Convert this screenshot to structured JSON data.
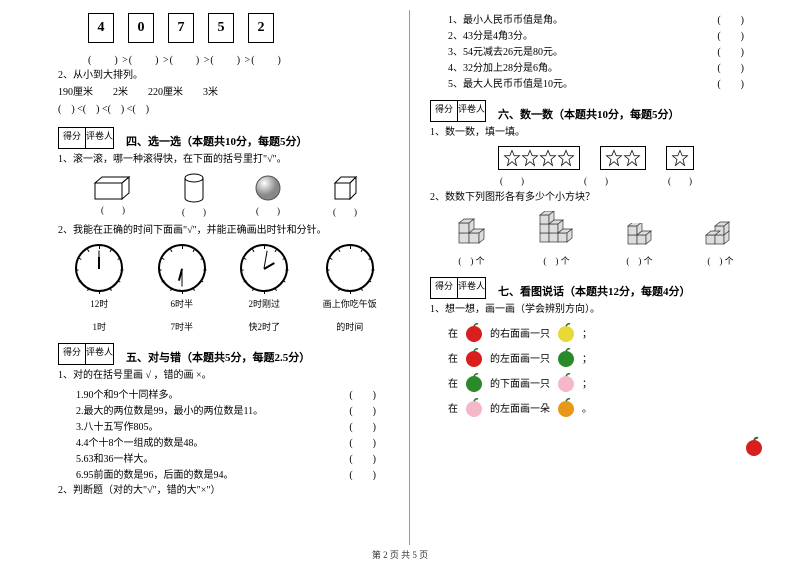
{
  "cards": [
    "4",
    "0",
    "7",
    "5",
    "2"
  ],
  "compare": "(　　) >(　　) >(　　) >(　　) >(　　)",
  "q2_left": {
    "title": "2、从小到大排列。",
    "values": "190厘米　　2米　　220厘米　　3米",
    "blanks": "(　) <(　) <(　) <(　)"
  },
  "score": {
    "l": "得分",
    "r": "评卷人"
  },
  "s4": {
    "title": "四、选一选（本题共10分，每题5分）",
    "q1": "1、滚一滚，哪一种滚得快，在下面的括号里打\"√\"。",
    "q2": "2、我能在正确的时间下面画\"√\"，并能正确画出时针和分针。",
    "clock_labels": [
      "12时",
      "6时半",
      "2时刚过",
      "画上你吃午饭"
    ],
    "clock_sub": [
      "1时",
      "7时半",
      "快2时了",
      "的时间"
    ]
  },
  "s5": {
    "title": "五、对与错（本题共5分，每题2.5分）",
    "q1": "1、对的在括号里画 √ ，错的画 ×。",
    "items": [
      "1.90个和9个十同样多。",
      "2.最大的两位数是99，最小的两位数是11。",
      "3.八十五写作805。",
      "4.4个十8个一组成的数是48。",
      "5.63和36一样大。",
      "6.95前面的数是96，后面的数是94。"
    ],
    "q2": "2、判断题（对的大\"√\"，错的大\"×\"）"
  },
  "s5_right_items": [
    "1、最小人民币币值是角。",
    "2、43分是4角3分。",
    "3、54元减去26元是80元。",
    "4、32分加上28分是6角。",
    "5、最大人民币币值是10元。"
  ],
  "s6": {
    "title": "六、数一数（本题共10分，每题5分）",
    "q1": "1、数一数，填一填。",
    "q2": "2、数数下列图形各有多少个小方块？"
  },
  "s7": {
    "title": "七、看图说话（本题共12分，每题4分）",
    "q1": "1、想一想，画一画（学会辨别方向）。",
    "rows": [
      {
        "pre": "在",
        "post": "的右面画一只",
        "c1": "#d91e1e",
        "c2": "#e8d838"
      },
      {
        "pre": "在",
        "post": "的左面画一只",
        "c1": "#d91e1e",
        "c2": "#2a8a2a"
      },
      {
        "pre": "在",
        "post": "的下面画一只",
        "c1": "#2a8a2a",
        "c2": "#f5b8c8"
      },
      {
        "pre": "在",
        "post": "的左面画一朵",
        "c1": "#f5b8c8",
        "c2": "#e89818"
      }
    ],
    "punct": "；",
    "punct_last": "。"
  },
  "footer": "第 2 页 共 5 页",
  "paren": "(　　)",
  "paren_ge": "(　) 个",
  "colors": {
    "apple": "#d91e1e",
    "pear": "#e8d838",
    "melon": "#2a8a2a",
    "peach": "#f5b8c8",
    "flower": "#e89818"
  }
}
